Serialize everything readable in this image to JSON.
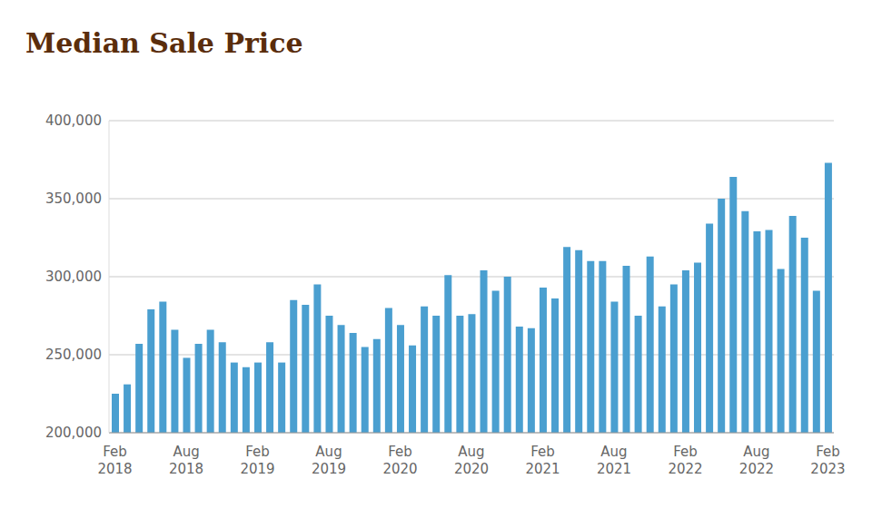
{
  "chart_data": {
    "type": "bar",
    "title": "Median Sale Price",
    "categories": [
      "Feb 2018",
      null,
      null,
      null,
      null,
      null,
      "Aug 2018",
      null,
      null,
      null,
      null,
      null,
      "Feb 2019",
      null,
      null,
      null,
      null,
      null,
      "Aug 2019",
      null,
      null,
      null,
      null,
      null,
      "Feb 2020",
      null,
      null,
      null,
      null,
      null,
      "Aug 2020",
      null,
      null,
      null,
      null,
      null,
      "Feb 2021",
      null,
      null,
      null,
      null,
      null,
      "Aug 2021",
      null,
      null,
      null,
      null,
      null,
      "Feb 2022",
      null,
      null,
      null,
      null,
      null,
      "Aug 2022",
      null,
      null,
      null,
      null,
      null,
      "Feb 2023"
    ],
    "values": [
      225000,
      231000,
      257000,
      279000,
      284000,
      266000,
      248000,
      257000,
      266000,
      258000,
      245000,
      242000,
      245000,
      258000,
      245000,
      285000,
      282000,
      295000,
      275000,
      269000,
      264000,
      255000,
      260000,
      280000,
      269000,
      256000,
      281000,
      275000,
      301000,
      275000,
      276000,
      304000,
      291000,
      300000,
      268000,
      267000,
      293000,
      286000,
      319000,
      317000,
      310000,
      310000,
      284000,
      307000,
      275000,
      313000,
      281000,
      295000,
      304000,
      309000,
      334000,
      350000,
      364000,
      342000,
      329000,
      330000,
      305000,
      339000,
      325000,
      291000,
      373000
    ],
    "color": "#4a9fd0",
    "ylim": [
      200000,
      400000
    ],
    "yticks": [
      {
        "value": 200000,
        "label": "200,000"
      },
      {
        "value": 250000,
        "label": "250,000"
      },
      {
        "value": 300000,
        "label": "300,000"
      },
      {
        "value": 350000,
        "label": "350,000"
      },
      {
        "value": 400000,
        "label": "400,000"
      }
    ],
    "grid": true
  }
}
